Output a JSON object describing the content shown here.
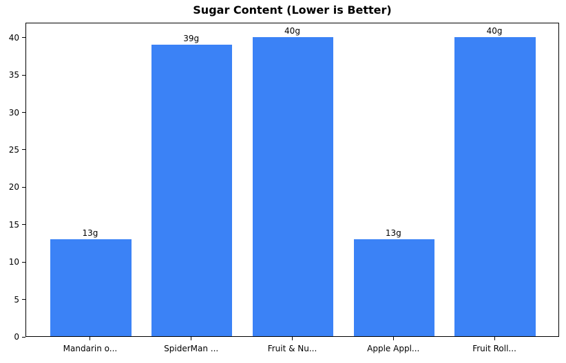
{
  "chart_data": {
    "type": "bar",
    "title": "Sugar Content (Lower is Better)",
    "categories": [
      "Mandarin o...",
      "SpiderMan ...",
      "Fruit & Nu...",
      "Apple Appl...",
      "Fruit Roll..."
    ],
    "values": [
      13,
      39,
      40,
      13,
      40
    ],
    "bar_labels": [
      "13g",
      "39g",
      "40g",
      "13g",
      "40g"
    ],
    "xlabel": "",
    "ylabel": "",
    "ylim": [
      0,
      42
    ],
    "yticks": [
      0,
      5,
      10,
      15,
      20,
      25,
      30,
      35,
      40
    ],
    "grid": false,
    "legend": null,
    "colors": {
      "bar": "#3b82f6",
      "text": "#000000",
      "spine": "#000000",
      "background": "#ffffff"
    }
  }
}
